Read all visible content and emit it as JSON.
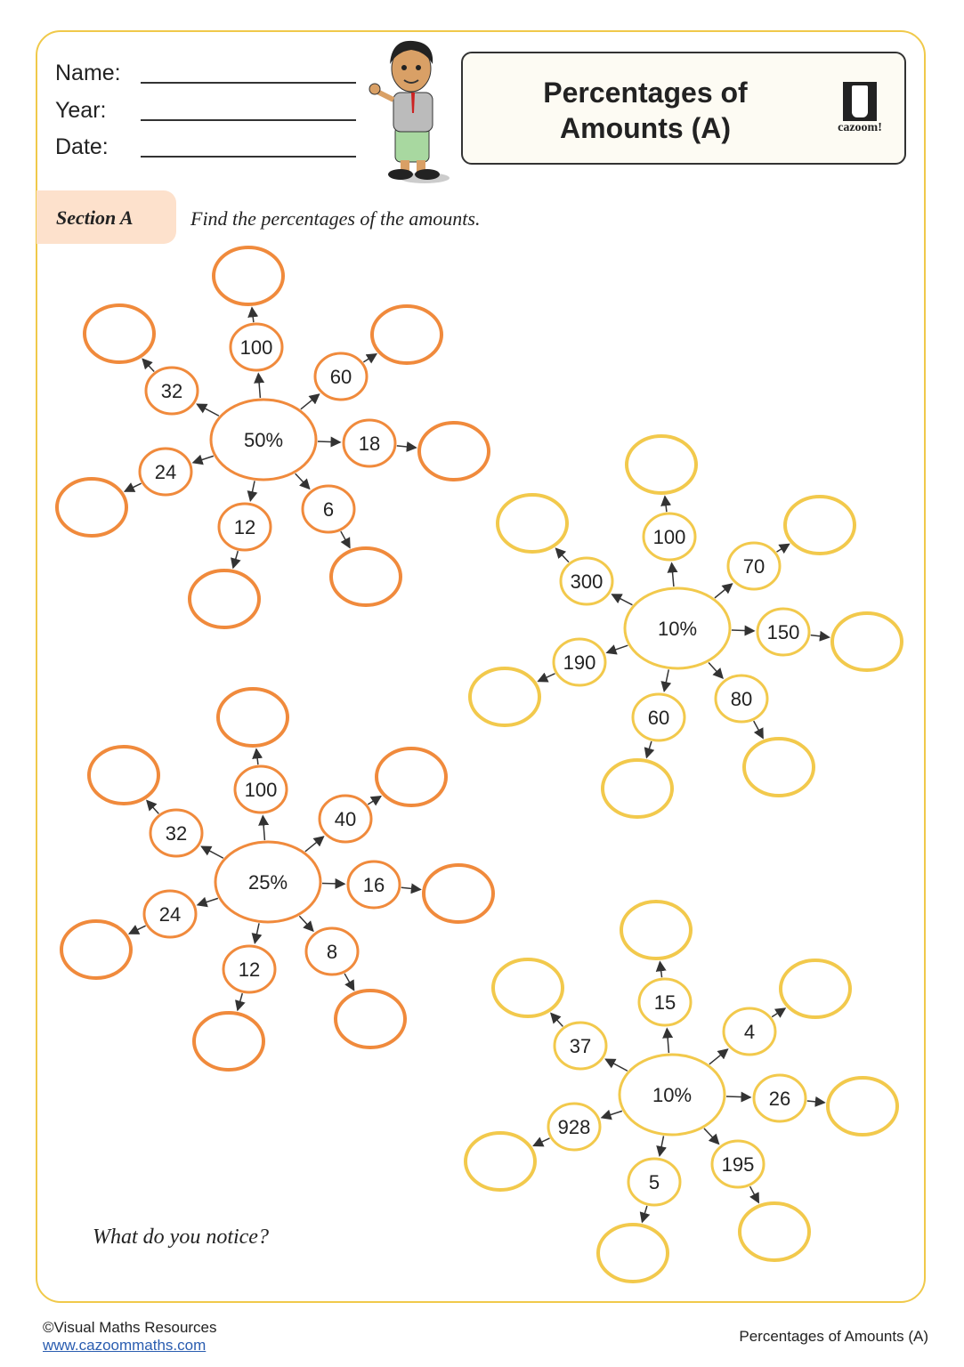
{
  "header": {
    "name_label": "Name:",
    "year_label": "Year:",
    "date_label": "Date:",
    "title_line1": "Percentages of",
    "title_line2": "Amounts (A)",
    "logo_text": "cazoom!"
  },
  "section": {
    "label": "Section A",
    "instruction": "Find the percentages of the amounts."
  },
  "colors": {
    "orange": "#f08a3c",
    "yellow": "#f2c94c",
    "border": "#f0c94a",
    "badge": "#fde1cc"
  },
  "diagrams": [
    {
      "percent": "50%",
      "color": "orange",
      "amounts": [
        "100",
        "60",
        "18",
        "6",
        "12",
        "24",
        "32"
      ]
    },
    {
      "percent": "10%",
      "color": "yellow",
      "amounts": [
        "100",
        "70",
        "150",
        "80",
        "60",
        "190",
        "300"
      ]
    },
    {
      "percent": "25%",
      "color": "orange",
      "amounts": [
        "100",
        "40",
        "16",
        "8",
        "12",
        "24",
        "32"
      ]
    },
    {
      "percent": "10%",
      "color": "yellow",
      "amounts": [
        "15",
        "4",
        "26",
        "195",
        "5",
        "928",
        "37"
      ]
    }
  ],
  "question": "What do you notice?",
  "footer": {
    "copyright": "©Visual Maths Resources",
    "url": "www.cazoommaths.com",
    "title": "Percentages of Amounts (A)"
  }
}
